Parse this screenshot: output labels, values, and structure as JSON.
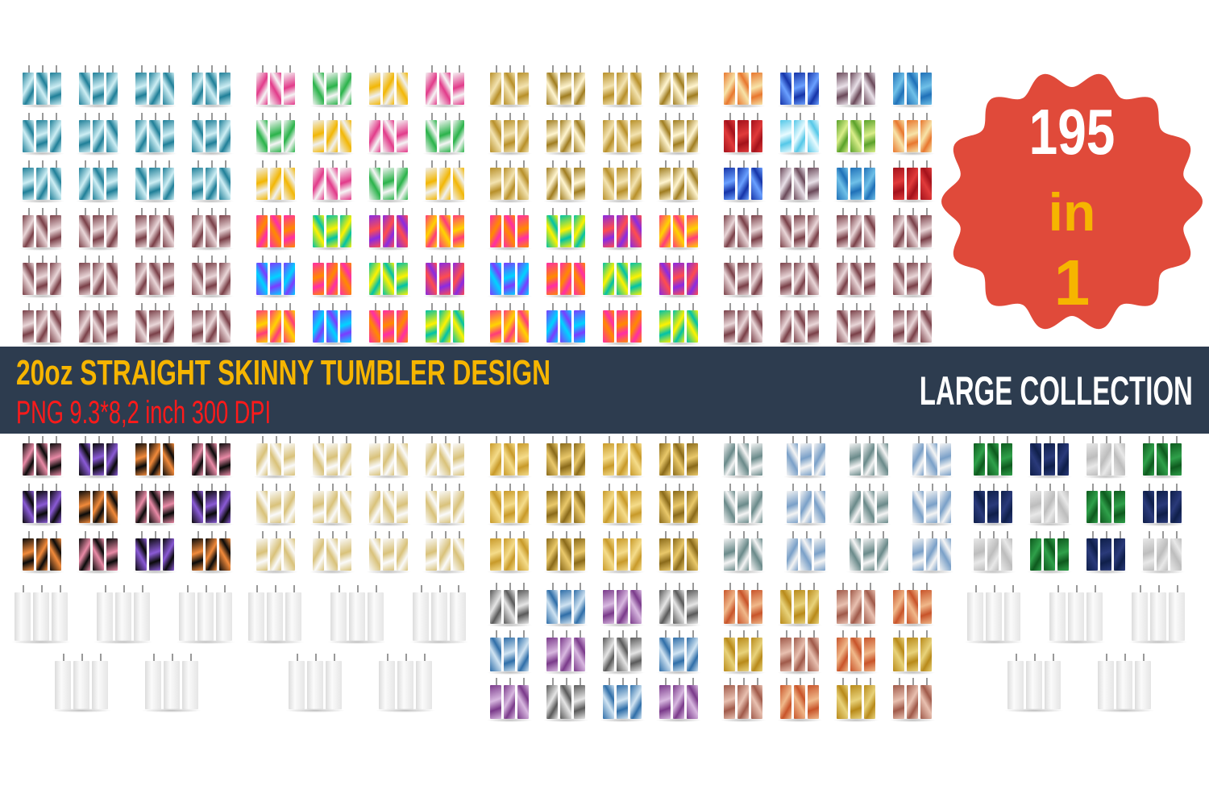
{
  "banner": {
    "title": "20oz STRAIGHT SKINNY TUMBLER DESIGN",
    "subtitle": "PNG 9.3*8,2 inch 300 DPI",
    "tag": "LARGE COLLECTION"
  },
  "badge": {
    "count": "195",
    "in": "in",
    "one": "1",
    "color": "#e04a3a",
    "text_color": "#ffffff",
    "accent": "#f6b500"
  },
  "colors": {
    "banner_bg": "#2d3c4f",
    "title": "#f6b500",
    "subtitle": "#ff1a1a"
  },
  "palettes": {
    "teal": [
      [
        "#1f7f98",
        "#cdeef4"
      ]
    ],
    "maroon": [
      [
        "#7a4048",
        "#e9d6d8"
      ]
    ],
    "confetti": [
      [
        "#f5f5f5",
        "#e23b8a"
      ],
      [
        "#f5f5f5",
        "#2ab34a"
      ],
      [
        "#f0f0f0",
        "#f2b705"
      ]
    ],
    "gold": [
      [
        "#b8902a",
        "#f3e3b0"
      ],
      [
        "#a07d20",
        "#fff5d0"
      ]
    ],
    "rainbow": [
      [
        "#ff3c7a",
        "#ffd400"
      ],
      [
        "#7b3cff",
        "#00d4ff"
      ],
      [
        "#ff2ea6",
        "#ff8a00"
      ],
      [
        "#00c2a8",
        "#fff200"
      ],
      [
        "#8a2be2",
        "#ff4d4d"
      ]
    ],
    "gradient": [
      [
        "#e8772e",
        "#f7e3a8"
      ],
      [
        "#1634a8",
        "#6aa0ff"
      ],
      [
        "#6b4a5a",
        "#e8e0e8"
      ],
      [
        "#2071b8",
        "#6fc0e8"
      ],
      [
        "#a4121b",
        "#e03a3a"
      ],
      [
        "#55c8e8",
        "#e8fbff"
      ],
      [
        "#5aa12a",
        "#d9ee8a"
      ]
    ],
    "hearts": [
      [
        "#0a0a0a",
        "#e98aa6"
      ],
      [
        "#0a0a0a",
        "#8a5ad6"
      ],
      [
        "#0a0a0a",
        "#f28a3a"
      ]
    ],
    "whitedots": [
      [
        "#fafafa",
        "#d9c27a"
      ]
    ],
    "goldfoil": [
      [
        "#c89a2a",
        "#f5dc8a"
      ],
      [
        "#8a6a1a",
        "#e9c86a"
      ]
    ],
    "swirl": [
      [
        "#5a5a5a",
        "#e5e5e5"
      ],
      [
        "#2f6ea8",
        "#cfe3f2"
      ],
      [
        "#7a3a8a",
        "#d8b8e0"
      ]
    ],
    "whitemarble": [
      [
        "#f4f4f4",
        "#6a8a8a"
      ],
      [
        "#f4f4f4",
        "#7aa0c8"
      ]
    ],
    "orange": [
      [
        "#c8542a",
        "#f0b88a"
      ],
      [
        "#b88a1a",
        "#e8d27a"
      ],
      [
        "#a05a4a",
        "#e8c0b0"
      ]
    ],
    "green": [
      [
        "#0e5a1e",
        "#2fa04a"
      ],
      [
        "#0f1f4a",
        "#2a3a7a"
      ],
      [
        "#e8e8e8",
        "#bdbdbd"
      ]
    ],
    "lineart": [
      [
        "#f2f2f2",
        "#ffffff"
      ]
    ]
  }
}
